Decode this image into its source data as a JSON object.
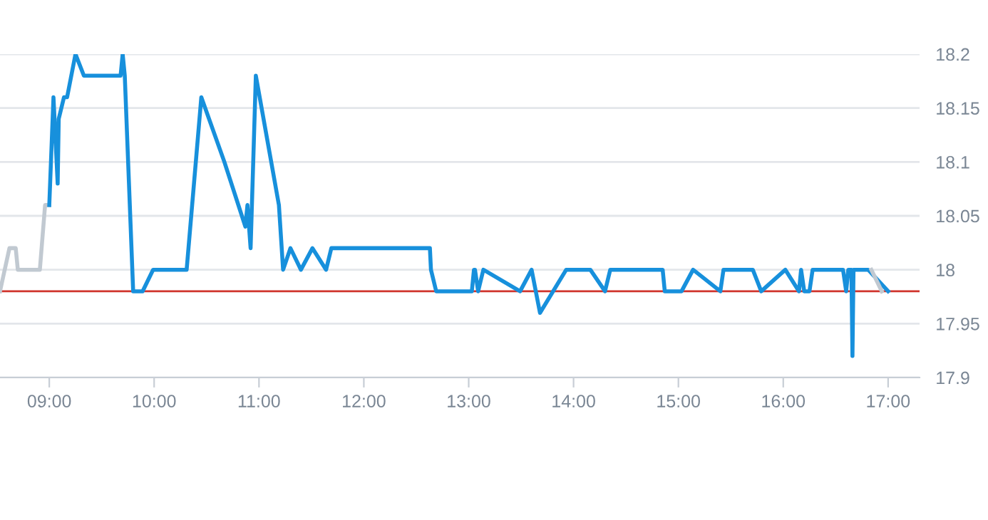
{
  "chart_data": {
    "type": "line",
    "series": [
      {
        "color": "#c1c9d1",
        "x": [
          8.53,
          8.62,
          8.68,
          8.7,
          8.91,
          8.96,
          9.0
        ],
        "values": [
          17.98,
          18.02,
          18.02,
          18.0,
          18.0,
          18.06,
          18.06
        ]
      },
      {
        "color": "#1790dc",
        "x": [
          9.0,
          9.04,
          9.08,
          9.09,
          9.14,
          9.17,
          9.25,
          9.33,
          9.68,
          9.7,
          9.72,
          9.75,
          9.8,
          9.89,
          9.99,
          10.31,
          10.45,
          10.67,
          10.87,
          10.89,
          10.92,
          10.97,
          11.19,
          11.23,
          11.3,
          11.4,
          11.51,
          11.64,
          11.69,
          12.63,
          12.64,
          12.69,
          13.03,
          13.05,
          13.06,
          13.09,
          13.14,
          13.49,
          13.6,
          13.68,
          13.93,
          14.16,
          14.3,
          14.35,
          14.85,
          14.87,
          15.03,
          15.14,
          15.4,
          15.43,
          15.71,
          15.79,
          16.02,
          16.15,
          16.17,
          16.2,
          16.25,
          16.28,
          16.57,
          16.6,
          16.62,
          16.65,
          16.66,
          16.67,
          16.81,
          17.0
        ],
        "values": [
          18.06,
          18.16,
          18.08,
          18.14,
          18.16,
          18.16,
          18.2,
          18.18,
          18.18,
          18.2,
          18.18,
          18.105,
          17.98,
          17.98,
          18.0,
          18.0,
          18.16,
          18.1,
          18.04,
          18.06,
          18.02,
          18.18,
          18.06,
          18.0,
          18.02,
          18.0,
          18.02,
          18.0,
          18.02,
          18.02,
          18.0,
          17.98,
          17.98,
          18.0,
          18.0,
          17.98,
          18.0,
          17.98,
          18.0,
          17.96,
          18.0,
          18.0,
          17.98,
          18.0,
          18.0,
          17.98,
          17.98,
          18.0,
          17.98,
          18.0,
          18.0,
          17.98,
          18.0,
          17.98,
          18.0,
          17.98,
          17.98,
          18.0,
          18.0,
          17.98,
          18.0,
          18.0,
          17.92,
          18.0,
          18.0,
          17.98
        ]
      },
      {
        "color": "#c1c9d1",
        "x": [
          16.84,
          16.94
        ],
        "values": [
          18.0,
          17.98
        ]
      }
    ],
    "xlim": [
      8.53,
      17.3
    ],
    "xticks": [
      {
        "value": 9,
        "label": "09:00"
      },
      {
        "value": 10,
        "label": "10:00"
      },
      {
        "value": 11,
        "label": "11:00"
      },
      {
        "value": 12,
        "label": "12:00"
      },
      {
        "value": 13,
        "label": "13:00"
      },
      {
        "value": 14,
        "label": "14:00"
      },
      {
        "value": 15,
        "label": "15:00"
      },
      {
        "value": 16,
        "label": "16:00"
      },
      {
        "value": 17,
        "label": "17:00"
      }
    ],
    "ylim": [
      17.9,
      18.2
    ],
    "yticks": [
      17.9,
      17.95,
      18,
      18.05,
      18.1,
      18.15,
      18.2
    ],
    "ref_lines": [
      {
        "axis": "y",
        "value": 17.98,
        "color": "#d0342c"
      }
    ],
    "grid": "y",
    "legend": false,
    "marker": "none",
    "line_style": "solid"
  }
}
